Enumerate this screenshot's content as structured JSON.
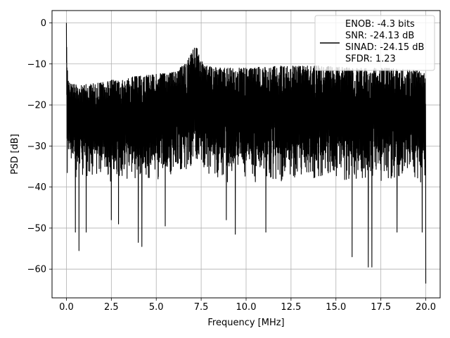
{
  "chart_data": {
    "type": "line",
    "title": "",
    "xlabel": "Frequency [MHz]",
    "ylabel": "PSD [dB]",
    "xlim": [
      -0.8,
      20.8
    ],
    "ylim": [
      -67,
      3
    ],
    "xticks": [
      0.0,
      2.5,
      5.0,
      7.5,
      10.0,
      12.5,
      15.0,
      17.5,
      20.0
    ],
    "xtick_labels": [
      "0.0",
      "2.5",
      "5.0",
      "7.5",
      "10.0",
      "12.5",
      "15.0",
      "17.5",
      "20.0"
    ],
    "yticks": [
      0,
      -10,
      -20,
      -30,
      -40,
      -50,
      -60
    ],
    "ytick_labels": [
      "0",
      "−10",
      "−20",
      "−30",
      "−40",
      "−50",
      "−60"
    ],
    "grid": true,
    "legend": {
      "placement": "top-right",
      "entries": [
        "ENOB: -4.3 bits",
        "SNR: -24.13 dB",
        "SINAD: -24.15 dB",
        "SFDR: 1.23"
      ]
    },
    "series": [
      {
        "color": "#000000",
        "envelope": {
          "x": [
            0.0,
            0.03,
            0.1,
            0.3,
            1.0,
            2.0,
            3.0,
            4.0,
            5.0,
            6.0,
            6.6,
            7.0,
            7.2,
            7.4,
            7.8,
            8.5,
            10.0,
            12.0,
            14.0,
            16.0,
            18.0,
            19.5,
            20.0
          ],
          "upper": [
            0.0,
            -8.0,
            -14.0,
            -15.0,
            -15.0,
            -14.5,
            -13.5,
            -13.0,
            -12.5,
            -12.0,
            -10.0,
            -7.0,
            -5.0,
            -8.0,
            -10.5,
            -11.0,
            -11.0,
            -10.5,
            -10.5,
            -11.0,
            -11.0,
            -11.5,
            -12.5
          ],
          "lower": [
            -5.0,
            -20.0,
            -26.0,
            -29.0,
            -30.0,
            -30.0,
            -30.0,
            -30.0,
            -30.0,
            -29.5,
            -28.0,
            -27.0,
            -26.0,
            -27.0,
            -29.0,
            -30.0,
            -30.0,
            -30.0,
            -30.0,
            -30.0,
            -30.0,
            -30.0,
            -31.0
          ]
        },
        "dips": [
          {
            "x": 0.05,
            "y": -36.5
          },
          {
            "x": 0.5,
            "y": -51.0
          },
          {
            "x": 0.7,
            "y": -55.5
          },
          {
            "x": 1.1,
            "y": -51.0
          },
          {
            "x": 2.5,
            "y": -48.0
          },
          {
            "x": 2.9,
            "y": -49.0
          },
          {
            "x": 4.0,
            "y": -53.5
          },
          {
            "x": 4.2,
            "y": -54.5
          },
          {
            "x": 5.5,
            "y": -49.5
          },
          {
            "x": 8.9,
            "y": -48.0
          },
          {
            "x": 9.4,
            "y": -51.5
          },
          {
            "x": 11.1,
            "y": -51.0
          },
          {
            "x": 15.9,
            "y": -57.0
          },
          {
            "x": 16.8,
            "y": -59.5
          },
          {
            "x": 17.0,
            "y": -59.5
          },
          {
            "x": 18.4,
            "y": -51.0
          },
          {
            "x": 19.8,
            "y": -51.0
          },
          {
            "x": 20.0,
            "y": -63.5
          }
        ]
      }
    ]
  }
}
